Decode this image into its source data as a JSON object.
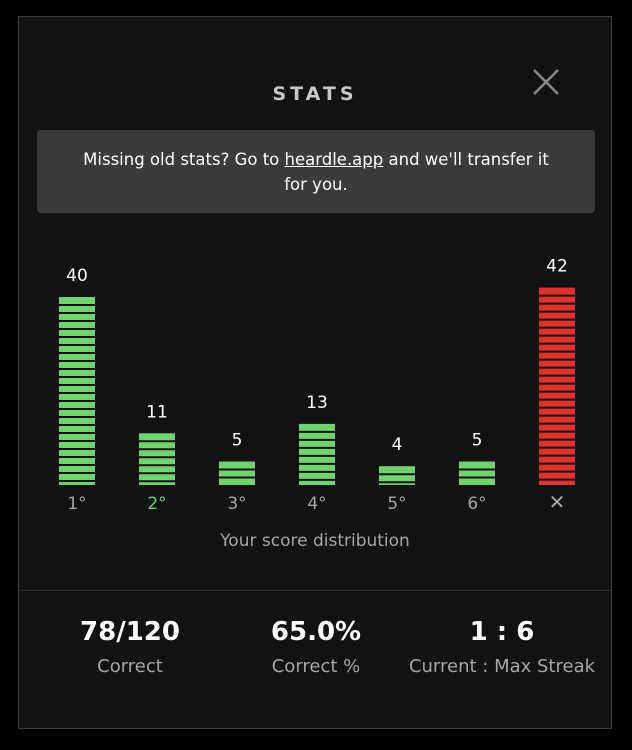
{
  "header": {
    "title": "STATS"
  },
  "banner": {
    "text_before": "Missing old stats? Go to ",
    "link_text": "heardle.app",
    "text_after": " and we'll transfer it for you."
  },
  "colors": {
    "success": "#6fd36f",
    "fail": "#e03131",
    "success_label": "#6fd36f",
    "label": "#a6a6a6"
  },
  "chart_data": {
    "type": "bar",
    "categories": [
      "1°",
      "2°",
      "3°",
      "4°",
      "5°",
      "6°",
      "✕"
    ],
    "values": [
      40,
      11,
      5,
      13,
      4,
      5,
      42
    ],
    "highlight_category": "2°",
    "xlabel": "Your score distribution"
  },
  "stats": [
    {
      "value": "78/120",
      "label": "Correct"
    },
    {
      "value": "65.0%",
      "label": "Correct %"
    },
    {
      "value": "1 : 6",
      "label": "Current : Max Streak"
    }
  ]
}
